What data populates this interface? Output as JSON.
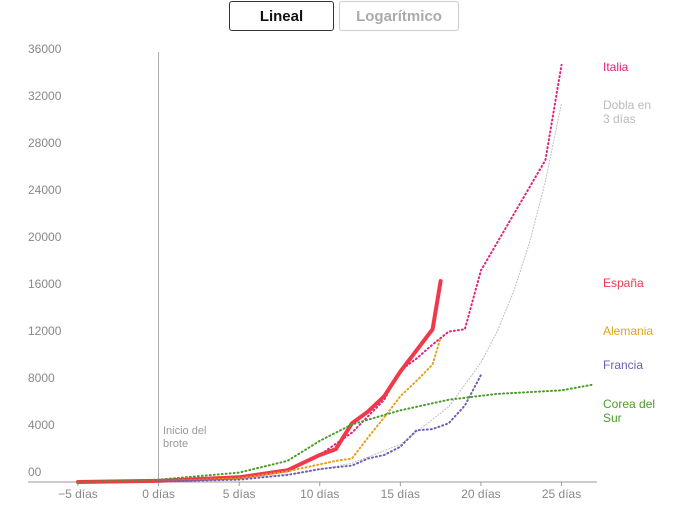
{
  "buttons": [
    "Lineal",
    "Logarítmico"
  ],
  "chart_data": {
    "type": "line",
    "annotation": "Inicio del brote",
    "xlim": [
      -8.1,
      27.2
    ],
    "ylim": [
      0,
      36000
    ],
    "xticks": [
      {
        "value": -5,
        "label": "−5 días"
      },
      {
        "value": 0,
        "label": "0 días"
      },
      {
        "value": 5,
        "label": "5 días"
      },
      {
        "value": 10,
        "label": "10 días"
      },
      {
        "value": 15,
        "label": "15 días"
      },
      {
        "value": 20,
        "label": "20 días"
      },
      {
        "value": 25,
        "label": "25 días"
      }
    ],
    "yticks": [
      {
        "value": 0,
        "label": "00"
      },
      4000,
      8000,
      12000,
      16000,
      20000,
      24000,
      28000,
      32000,
      36000
    ],
    "series": [
      {
        "name": "Italia",
        "color": "#e0237a",
        "style": "dotted",
        "x": [
          -5,
          0,
          5,
          8,
          10,
          12,
          14,
          15,
          16,
          17,
          18,
          19,
          20,
          22,
          24,
          25
        ],
        "values": [
          0,
          100,
          300,
          1000,
          2300,
          4200,
          7000,
          9500,
          10500,
          11700,
          12800,
          13000,
          18000,
          22700,
          27400,
          35500
        ]
      },
      {
        "name": "Dobla en 3 días",
        "color": "#bbbbbb",
        "style": "thin",
        "x": [
          0,
          3,
          6,
          9,
          12,
          15,
          18,
          20,
          21,
          22,
          23,
          24,
          25
        ],
        "values": [
          100,
          200,
          400,
          800,
          1600,
          3200,
          6400,
          10160,
          12800,
          16100,
          20300,
          25600,
          32250
        ]
      },
      {
        "name": "España",
        "color": "#f0394d",
        "style": "solid",
        "x": [
          -5,
          0,
          5,
          8,
          10,
          11,
          12,
          13,
          14,
          15,
          16,
          17,
          17.5
        ],
        "values": [
          0,
          100,
          400,
          1000,
          2300,
          2800,
          5000,
          6000,
          7300,
          9400,
          11200,
          13000,
          17100
        ]
      },
      {
        "name": "Alemania",
        "color": "#e3a21a",
        "style": "dotted",
        "x": [
          0,
          5,
          8,
          10,
          11,
          12,
          13,
          14,
          15,
          16,
          17,
          17.5
        ],
        "values": [
          50,
          300,
          900,
          1500,
          1800,
          2000,
          3800,
          5500,
          7300,
          8600,
          10000,
          12300
        ]
      },
      {
        "name": "Francia",
        "color": "#6d5fb5",
        "style": "dotted",
        "x": [
          0,
          5,
          8,
          10,
          12,
          13,
          14,
          15,
          16,
          17,
          18,
          19,
          20
        ],
        "values": [
          50,
          200,
          600,
          1100,
          1400,
          2000,
          2300,
          3000,
          4400,
          4500,
          5000,
          6500,
          9100
        ]
      },
      {
        "name": "Corea del Sur",
        "color": "#4c9a2a",
        "style": "dotted",
        "x": [
          -5,
          0,
          5,
          8,
          10,
          12,
          15,
          18,
          21,
          25,
          27
        ],
        "values": [
          0,
          200,
          800,
          1800,
          3500,
          4900,
          6100,
          7000,
          7500,
          7800,
          8300
        ]
      }
    ]
  }
}
